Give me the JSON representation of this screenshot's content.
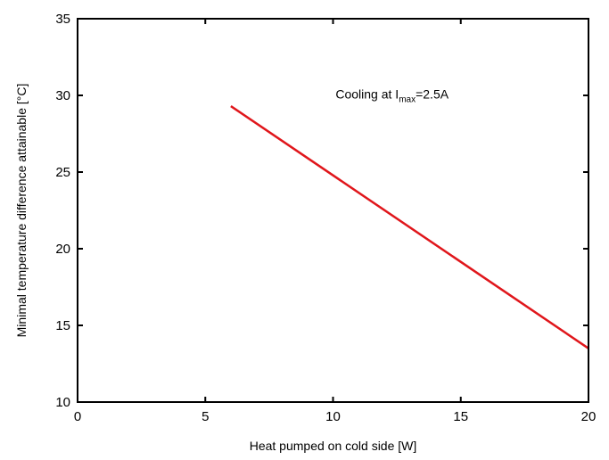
{
  "chart_data": {
    "type": "line",
    "title": "",
    "xlabel": "Heat pumped on cold side [W]",
    "ylabel": "Minimal temperature difference attainable [°C]",
    "xlim": [
      0,
      20
    ],
    "ylim": [
      10,
      35
    ],
    "x_ticks": [
      0,
      5,
      10,
      15,
      20
    ],
    "y_ticks": [
      10,
      15,
      20,
      25,
      30,
      35
    ],
    "x_tick_labels": [
      "0",
      "5",
      "10",
      "15",
      "20"
    ],
    "y_tick_labels": [
      "10",
      "15",
      "20",
      "25",
      "30",
      "35"
    ],
    "grid": false,
    "legend": null,
    "series": [
      {
        "color": "#e0161b",
        "x": [
          6,
          20
        ],
        "y": [
          29.3,
          13.5
        ]
      }
    ],
    "annotations": [
      {
        "parts": [
          {
            "text": "Cooling at I",
            "style": "normal"
          },
          {
            "text": "max",
            "style": "subscript"
          },
          {
            "text": "=2.5A",
            "style": "normal"
          }
        ],
        "x": 10.1,
        "y": 30.1
      }
    ]
  }
}
